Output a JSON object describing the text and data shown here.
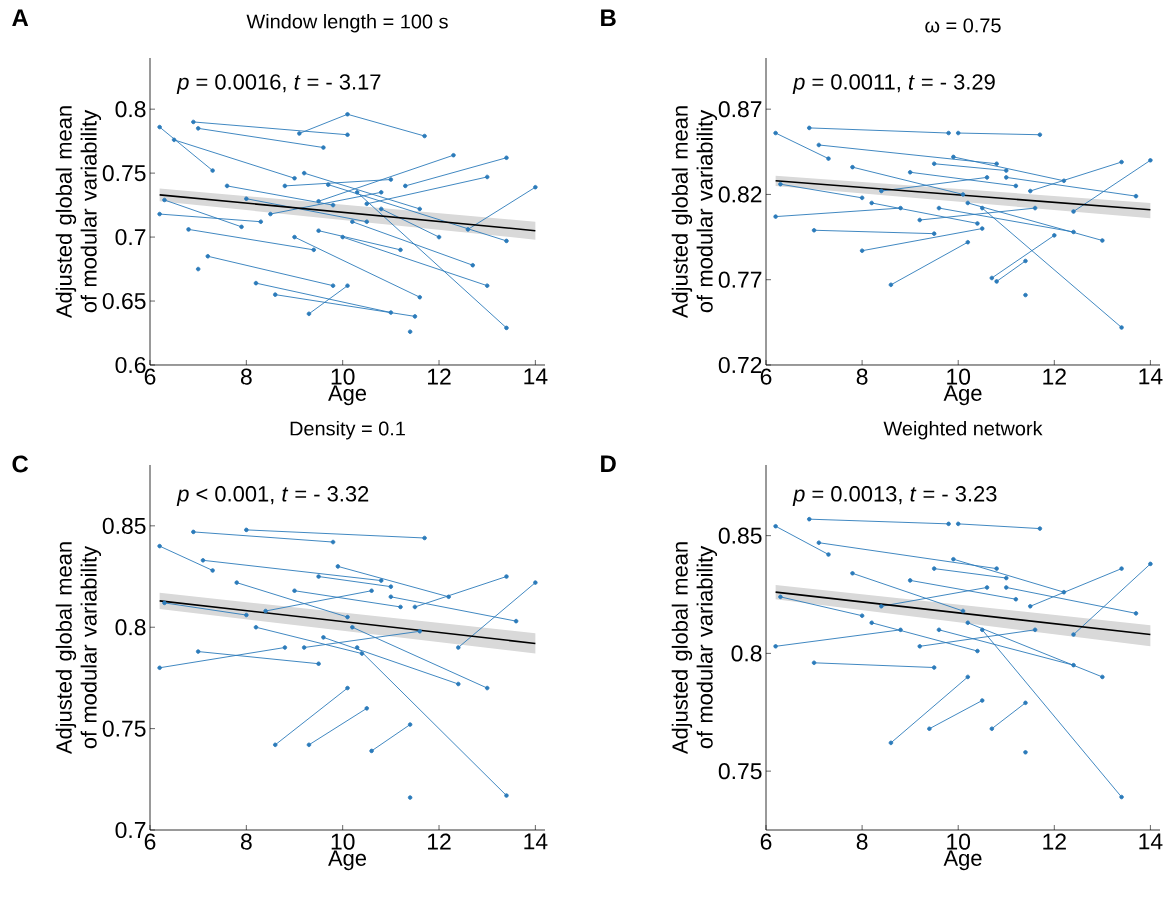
{
  "chart_data": [
    {
      "type": "line",
      "title": "Window length = 100 s",
      "xlabel": "Age",
      "ylabel": "Adjusted global mean of modular variability",
      "annotations": [
        "A",
        "*p* = 0.0016, *t* = - 3.17"
      ],
      "xlim": [
        6,
        14.2
      ],
      "ylim": [
        0.6,
        0.84
      ],
      "xticks": [
        6,
        8,
        10,
        12,
        14
      ],
      "yticks": [
        0.6,
        0.65,
        0.7,
        0.75,
        0.8
      ],
      "series": [
        {
          "color": "#2b7bba",
          "marker": "circle",
          "x": [
            6.2,
            7.3,
            null,
            6.9,
            10.1,
            null,
            7.0,
            9.6,
            null,
            6.5,
            9.0,
            null,
            6.2,
            8.3,
            null,
            6.3,
            7.9,
            null,
            6.8,
            9.4,
            null,
            7.0,
            null,
            7.2,
            9.8,
            null,
            8.2,
            11.0,
            null,
            9.3,
            10.1,
            null,
            9.1,
            10.1,
            11.7,
            null,
            8.6,
            11.5,
            null,
            11.4,
            null,
            13.4,
            10.3,
            null,
            13.4,
            11.3,
            null,
            12.3,
            9.5,
            null,
            14.0,
            12.6,
            null,
            13.0,
            10.5,
            null,
            13.4,
            9.7,
            null,
            13.0,
            10.0,
            null,
            12.7,
            10.2,
            null,
            11.6,
            9.0,
            null,
            10.8,
            12.0,
            null,
            8.8,
            11.0,
            null,
            8.0,
            10.5,
            null,
            9.5,
            11.2,
            null,
            8.5,
            10.8,
            null,
            7.6,
            9.8,
            null,
            9.2,
            11.6
          ],
          "values": [
            0.786,
            0.752,
            null,
            0.79,
            0.78,
            null,
            0.785,
            0.77,
            null,
            0.776,
            0.746,
            null,
            0.718,
            0.712,
            null,
            0.729,
            0.708,
            null,
            0.706,
            0.69,
            null,
            0.675,
            null,
            0.685,
            0.662,
            null,
            0.664,
            0.641,
            null,
            0.64,
            0.662,
            null,
            0.781,
            0.796,
            0.779,
            null,
            0.655,
            0.638,
            null,
            0.626,
            null,
            0.629,
            0.735,
            null,
            0.762,
            0.74,
            null,
            0.764,
            0.728,
            null,
            0.739,
            0.706,
            null,
            0.747,
            0.726,
            null,
            0.697,
            0.741,
            null,
            0.662,
            0.7,
            null,
            0.678,
            0.712,
            null,
            0.653,
            0.7,
            null,
            0.722,
            0.7,
            null,
            0.74,
            0.745,
            null,
            0.73,
            0.712,
            null,
            0.705,
            0.69,
            null,
            0.718,
            0.735,
            null,
            0.74,
            0.725,
            null,
            0.75,
            0.722
          ]
        },
        {
          "color": "#000000",
          "marker": "none",
          "x": [
            6.2,
            14.0
          ],
          "values": [
            0.733,
            0.705
          ],
          "lower": [
            0.728,
            0.698
          ],
          "upper": [
            0.738,
            0.712
          ]
        }
      ]
    },
    {
      "type": "line",
      "title": "ω = 0.75",
      "xlabel": "Age",
      "ylabel": "Adjusted global mean of modular variability",
      "annotations": [
        "B",
        "*p* = 0.0011, *t* = - 3.29"
      ],
      "xlim": [
        6,
        14.2
      ],
      "ylim": [
        0.72,
        0.9
      ],
      "xticks": [
        6,
        8,
        10,
        12,
        14
      ],
      "yticks": [
        0.72,
        0.77,
        0.82,
        0.87
      ],
      "series": [
        {
          "color": "#2b7bba",
          "marker": "circle",
          "x": [
            6.2,
            7.3,
            null,
            6.9,
            9.8,
            null,
            10.0,
            11.7,
            null,
            7.1,
            10.8,
            null,
            6.2,
            8.8,
            null,
            6.3,
            8.0,
            null,
            7.0,
            9.5,
            null,
            8.0,
            10.5,
            null,
            8.6,
            10.2,
            null,
            10.7,
            12.0,
            null,
            10.8,
            11.4,
            null,
            11.4,
            null,
            13.4,
            10.5,
            null,
            14.0,
            12.4,
            null,
            13.4,
            11.5,
            null,
            13.7,
            11.0,
            null,
            13.0,
            10.2,
            null,
            12.4,
            9.6,
            null,
            9.0,
            11.2,
            null,
            8.4,
            10.6,
            null,
            9.5,
            11.0,
            null,
            7.8,
            10.1,
            null,
            9.2,
            11.6,
            null,
            9.9,
            12.2,
            null,
            8.2,
            10.4
          ],
          "values": [
            0.856,
            0.841,
            null,
            0.859,
            0.856,
            null,
            0.856,
            0.855,
            null,
            0.849,
            0.838,
            null,
            0.807,
            0.812,
            null,
            0.826,
            0.818,
            null,
            0.799,
            0.797,
            null,
            0.787,
            0.8,
            null,
            0.767,
            0.792,
            null,
            0.771,
            0.796,
            null,
            0.769,
            0.781,
            null,
            0.761,
            null,
            0.742,
            0.812,
            null,
            0.84,
            0.81,
            null,
            0.839,
            0.822,
            null,
            0.819,
            0.83,
            null,
            0.793,
            0.815,
            null,
            0.798,
            0.812,
            null,
            0.833,
            0.825,
            null,
            0.822,
            0.83,
            null,
            0.838,
            0.834,
            null,
            0.836,
            0.82,
            null,
            0.805,
            0.812,
            null,
            0.842,
            0.828,
            null,
            0.815,
            0.803
          ]
        },
        {
          "color": "#000000",
          "marker": "none",
          "x": [
            6.2,
            14.0
          ],
          "values": [
            0.828,
            0.811
          ],
          "lower": [
            0.825,
            0.806
          ],
          "upper": [
            0.831,
            0.815
          ]
        }
      ]
    },
    {
      "type": "line",
      "title": "Density = 0.1",
      "xlabel": "Age",
      "ylabel": "Adjusted global mean of modular variability",
      "annotations": [
        "C",
        "*p* < 0.001, *t* = - 3.32"
      ],
      "xlim": [
        6,
        14.2
      ],
      "ylim": [
        0.7,
        0.88
      ],
      "xticks": [
        6,
        8,
        10,
        12,
        14
      ],
      "yticks": [
        0.7,
        0.75,
        0.8,
        0.85
      ],
      "series": [
        {
          "color": "#2b7bba",
          "marker": "circle",
          "x": [
            6.2,
            7.3,
            null,
            6.9,
            9.8,
            null,
            8.0,
            11.7,
            null,
            7.1,
            10.8,
            null,
            6.2,
            8.8,
            null,
            6.3,
            8.0,
            null,
            7.0,
            9.5,
            null,
            8.6,
            10.1,
            null,
            9.3,
            10.5,
            null,
            10.6,
            11.4,
            null,
            11.4,
            null,
            13.4,
            10.3,
            null,
            14.0,
            12.4,
            null,
            13.4,
            11.5,
            null,
            13.6,
            11.0,
            null,
            13.0,
            10.2,
            null,
            12.4,
            9.6,
            null,
            9.0,
            11.2,
            null,
            8.4,
            10.6,
            null,
            9.5,
            11.0,
            null,
            7.8,
            10.1,
            null,
            9.2,
            11.6,
            null,
            9.9,
            12.2,
            null,
            8.2,
            10.4
          ],
          "values": [
            0.84,
            0.828,
            null,
            0.847,
            0.842,
            null,
            0.848,
            0.844,
            null,
            0.833,
            0.823,
            null,
            0.78,
            0.79,
            null,
            0.812,
            0.806,
            null,
            0.788,
            0.782,
            null,
            0.742,
            0.77,
            null,
            0.742,
            0.76,
            null,
            0.739,
            0.752,
            null,
            0.716,
            null,
            0.717,
            0.79,
            null,
            0.822,
            0.79,
            null,
            0.825,
            0.81,
            null,
            0.803,
            0.815,
            null,
            0.77,
            0.8,
            null,
            0.772,
            0.795,
            null,
            0.818,
            0.81,
            null,
            0.808,
            0.818,
            null,
            0.825,
            0.82,
            null,
            0.822,
            0.805,
            null,
            0.79,
            0.798,
            null,
            0.83,
            0.815,
            null,
            0.8,
            0.787
          ]
        },
        {
          "color": "#000000",
          "marker": "none",
          "x": [
            6.2,
            14.0
          ],
          "values": [
            0.813,
            0.792
          ],
          "lower": [
            0.809,
            0.787
          ],
          "upper": [
            0.817,
            0.797
          ]
        }
      ]
    },
    {
      "type": "line",
      "title": "Weighted network",
      "xlabel": "Age",
      "ylabel": "Adjusted global mean of modular variability",
      "annotations": [
        "D",
        "*p* = 0.0013, *t* = - 3.23"
      ],
      "xlim": [
        6,
        14.2
      ],
      "ylim": [
        0.725,
        0.88
      ],
      "xticks": [
        6,
        8,
        10,
        12,
        14
      ],
      "yticks": [
        0.75,
        0.8,
        0.85
      ],
      "series": [
        {
          "color": "#2b7bba",
          "marker": "circle",
          "x": [
            6.2,
            7.3,
            null,
            6.9,
            9.8,
            null,
            10.0,
            11.7,
            null,
            7.1,
            10.8,
            null,
            6.2,
            8.8,
            null,
            6.3,
            8.0,
            null,
            7.0,
            9.5,
            null,
            8.6,
            10.2,
            null,
            9.4,
            10.5,
            null,
            10.7,
            11.4,
            null,
            11.4,
            null,
            13.4,
            10.5,
            null,
            14.0,
            12.4,
            null,
            13.4,
            11.5,
            null,
            13.7,
            11.0,
            null,
            13.0,
            10.2,
            null,
            12.4,
            9.6,
            null,
            9.0,
            11.2,
            null,
            8.4,
            10.6,
            null,
            9.5,
            11.0,
            null,
            7.8,
            10.1,
            null,
            9.2,
            11.6,
            null,
            9.9,
            12.2,
            null,
            8.2,
            10.4
          ],
          "values": [
            0.854,
            0.842,
            null,
            0.857,
            0.855,
            null,
            0.855,
            0.853,
            null,
            0.847,
            0.836,
            null,
            0.803,
            0.81,
            null,
            0.824,
            0.816,
            null,
            0.796,
            0.794,
            null,
            0.762,
            0.79,
            null,
            0.768,
            0.78,
            null,
            0.768,
            0.779,
            null,
            0.758,
            null,
            0.739,
            0.81,
            null,
            0.838,
            0.808,
            null,
            0.836,
            0.82,
            null,
            0.817,
            0.828,
            null,
            0.79,
            0.813,
            null,
            0.795,
            0.81,
            null,
            0.831,
            0.823,
            null,
            0.82,
            0.828,
            null,
            0.836,
            0.832,
            null,
            0.834,
            0.818,
            null,
            0.803,
            0.81,
            null,
            0.84,
            0.826,
            null,
            0.813,
            0.801
          ]
        },
        {
          "color": "#000000",
          "marker": "none",
          "x": [
            6.2,
            14.0
          ],
          "values": [
            0.826,
            0.808
          ],
          "lower": [
            0.823,
            0.803
          ],
          "upper": [
            0.829,
            0.812
          ]
        }
      ]
    }
  ]
}
